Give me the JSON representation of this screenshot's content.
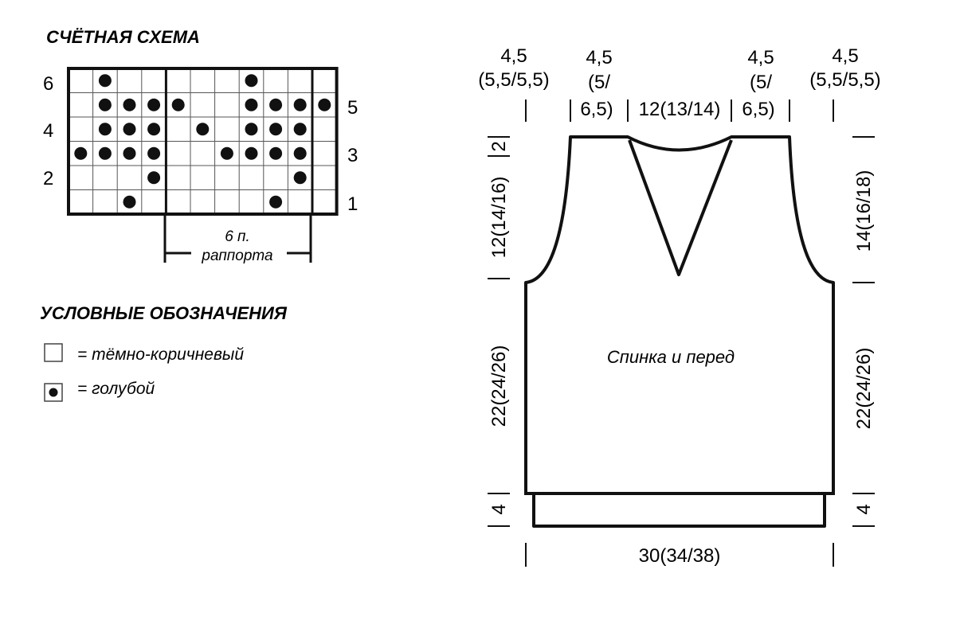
{
  "chart_title": "СЧЁТНАЯ СХЕМА",
  "row_numbers_left": [
    "6",
    "4",
    "2"
  ],
  "row_numbers_right": [
    "5",
    "3",
    "1"
  ],
  "repeat_label_1": "6 п.",
  "repeat_label_2": "раппорта",
  "legend": {
    "title": "УСЛОВНЫЕ ОБОЗНАЧЕНИЯ",
    "items": [
      {
        "symbol": "empty-square",
        "label": "= тёмно-коричневый"
      },
      {
        "symbol": "dot-square",
        "label": "= голубой"
      }
    ]
  },
  "chart_grid": {
    "rows": 6,
    "cols": 11,
    "dots": [
      {
        "row": 6,
        "cols": [
          2,
          8
        ]
      },
      {
        "row": 5,
        "cols": [
          2,
          3,
          4,
          5,
          8,
          9,
          10,
          11
        ]
      },
      {
        "row": 4,
        "cols": [
          2,
          3,
          4,
          6,
          8,
          9,
          10
        ]
      },
      {
        "row": 3,
        "cols": [
          1,
          2,
          3,
          4,
          7,
          8,
          9,
          10
        ]
      },
      {
        "row": 2,
        "cols": [
          4,
          10
        ]
      },
      {
        "row": 1,
        "cols": [
          3,
          9
        ]
      }
    ]
  },
  "pattern": {
    "piece_label": "Спинка и перед",
    "top_dims": {
      "shoulder_outer_1": "4,5",
      "shoulder_outer_2": "(5,5/5,5)",
      "shoulder_inner_1": "4,5",
      "shoulder_inner_2": "(5/",
      "shoulder_inner_3": "6,5)",
      "neck": "12(13/14)"
    },
    "left_dims": {
      "armhole": "12(14/16)",
      "neck_depth": "2",
      "body": "22(24/26)",
      "rib": "4"
    },
    "right_dims": {
      "armhole": "14(16/18)",
      "body": "22(24/26)",
      "rib": "4"
    },
    "bottom_dim": "30(34/38)"
  }
}
